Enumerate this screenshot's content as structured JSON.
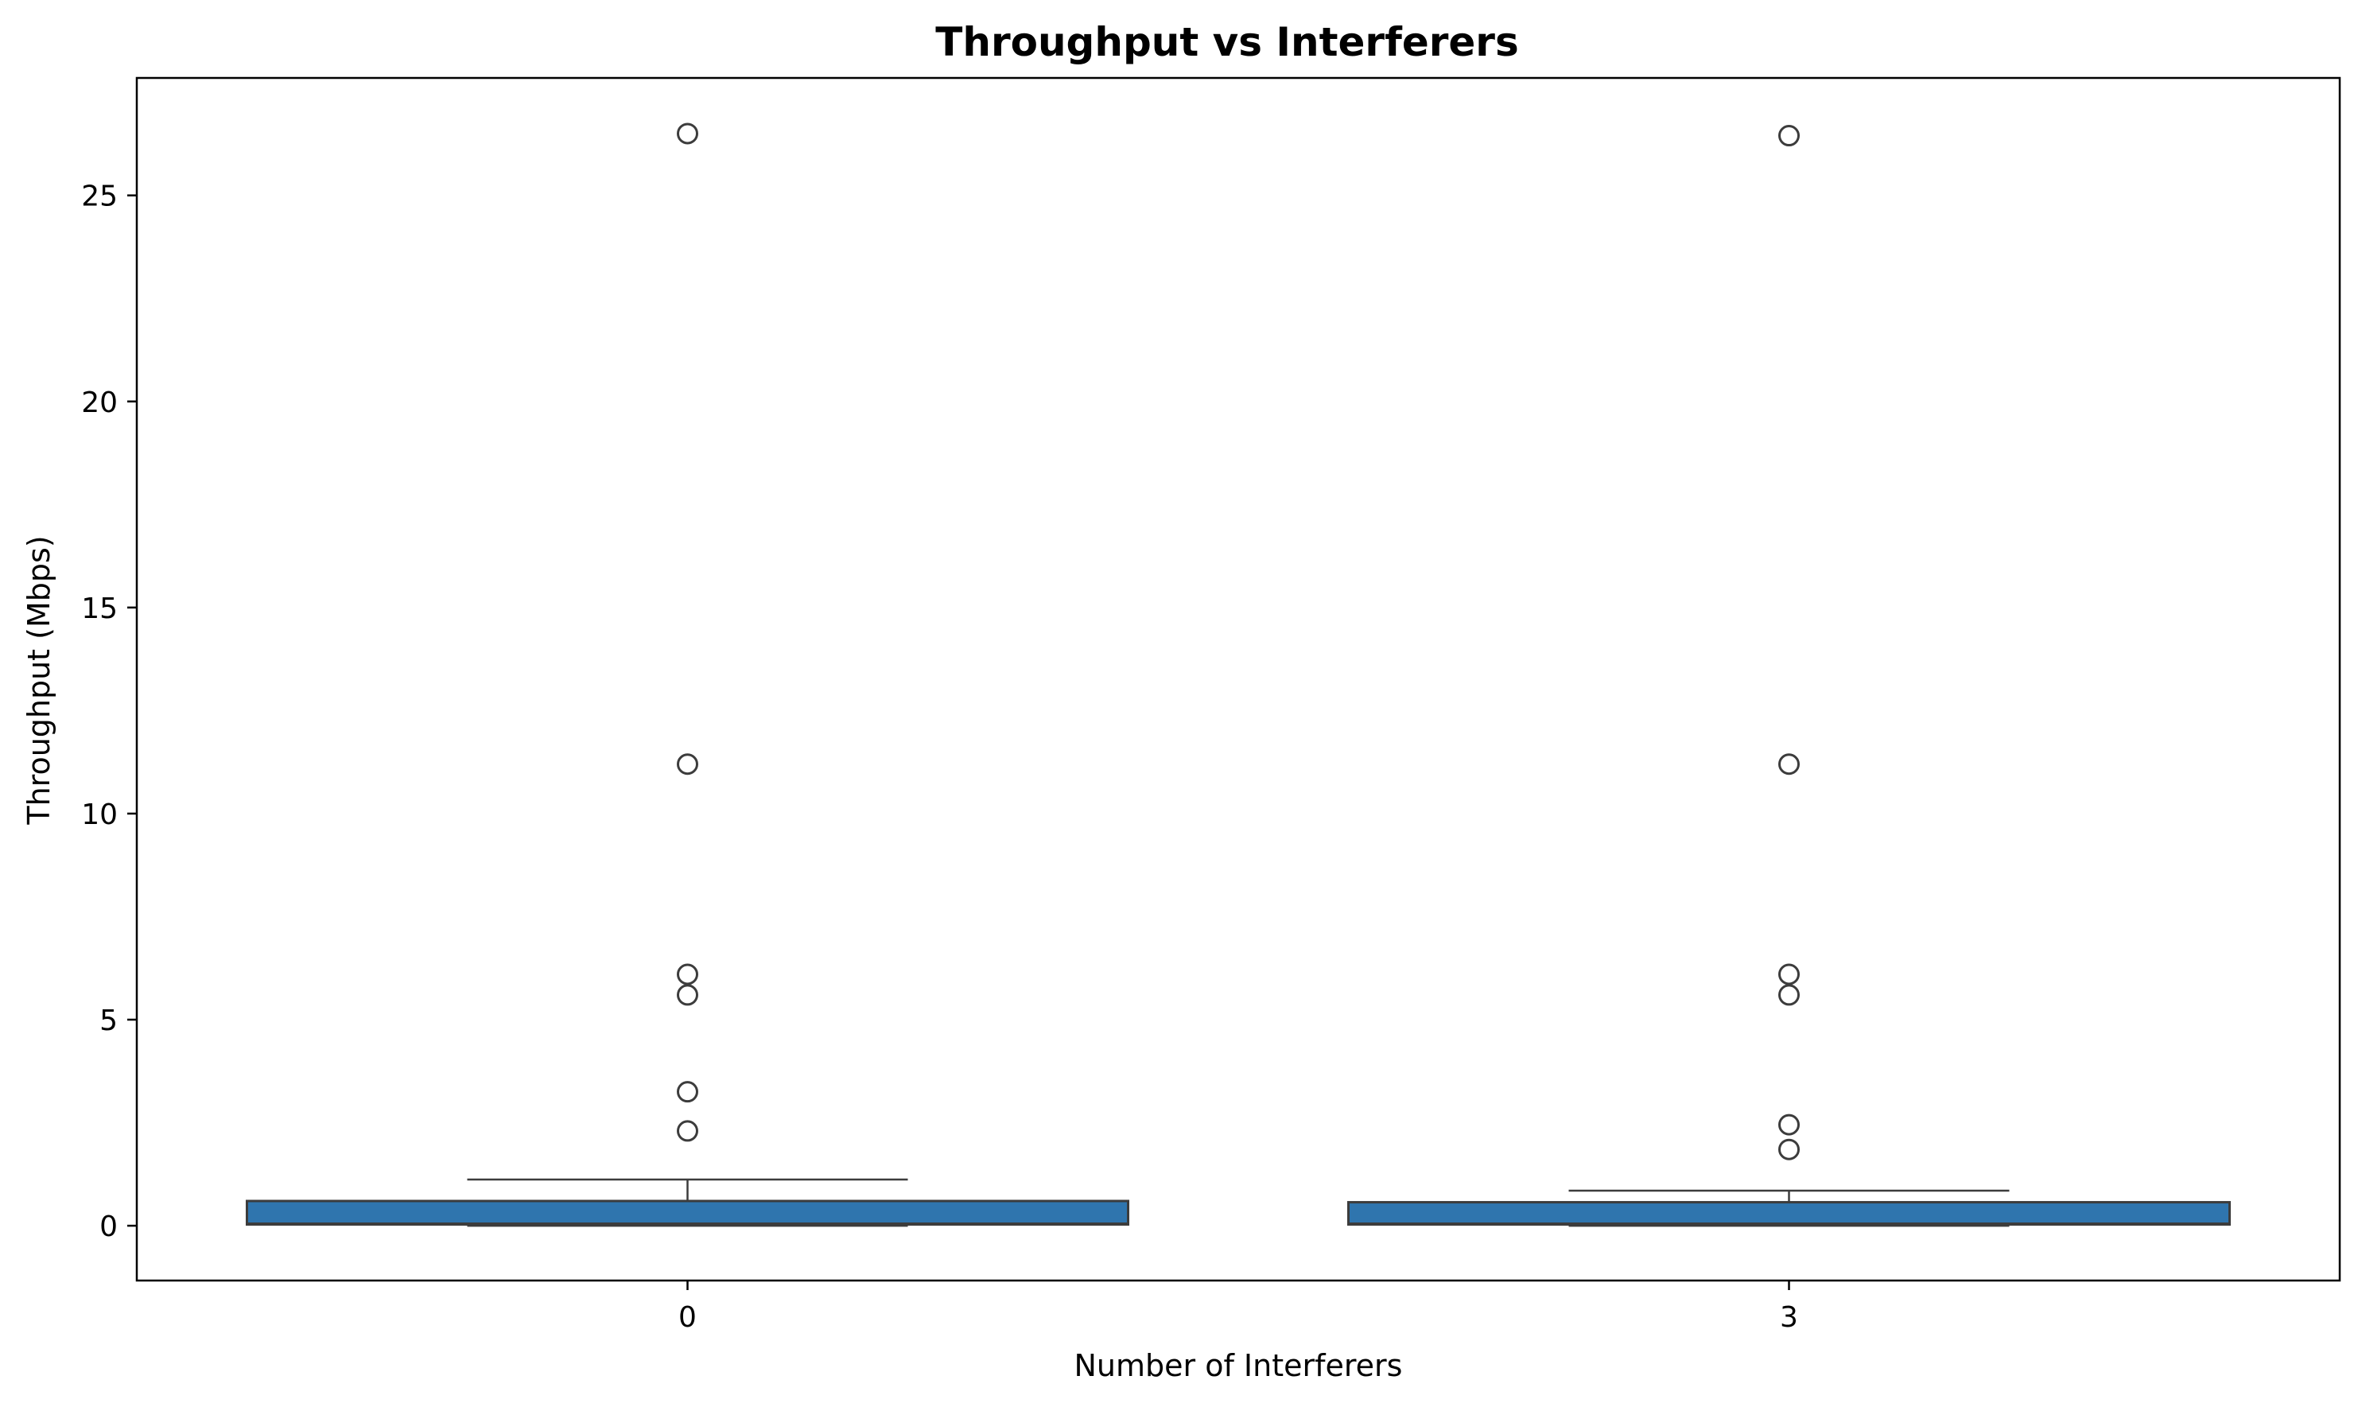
{
  "chart_data": {
    "type": "box",
    "title": "Throughput vs Interferers",
    "xlabel": "Number of Interferers",
    "ylabel": "Throughput (Mbps)",
    "ylim": [
      -1.33,
      27.85
    ],
    "yticks": [
      0,
      5,
      10,
      15,
      20,
      25
    ],
    "yticklabels": [
      "0",
      "5",
      "10",
      "15",
      "20",
      "25"
    ],
    "grid": false,
    "categories": [
      "0",
      "3"
    ],
    "box_color": "#2f75ae",
    "edge_color": "#3c3c3c",
    "boxes": [
      {
        "category": "0",
        "whisker_low": 0.0,
        "q1": 0.03,
        "median": 0.05,
        "q3": 0.6,
        "whisker_high": 1.12,
        "outliers": [
          2.3,
          3.25,
          5.6,
          6.1,
          11.2,
          26.5
        ]
      },
      {
        "category": "3",
        "whisker_low": 0.0,
        "q1": 0.03,
        "median": 0.05,
        "q3": 0.57,
        "whisker_high": 0.85,
        "outliers": [
          1.85,
          2.45,
          5.6,
          6.1,
          11.2,
          26.45
        ]
      }
    ]
  }
}
